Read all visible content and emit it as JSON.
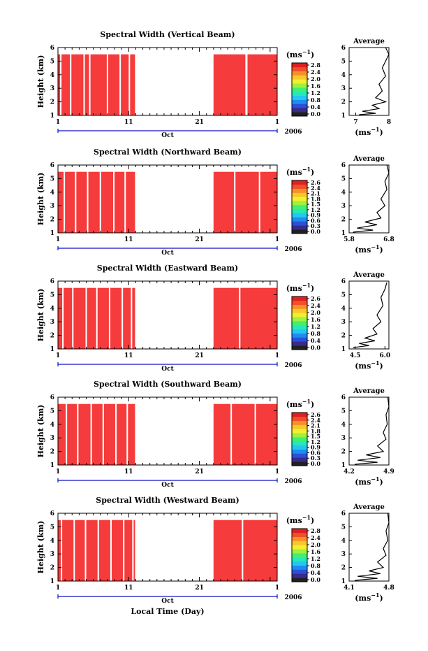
{
  "figure": {
    "xlabel": "Local Time (Day)",
    "month_label": "Oct",
    "year_label": "2006",
    "x_ticks": [
      "1",
      "11",
      "21",
      "1"
    ],
    "y_label": "Height (km)",
    "y_ticks": [
      "1",
      "2",
      "3",
      "4",
      "5",
      "6"
    ],
    "colorbar_unit_base": "(ms",
    "colorbar_unit_exp": "−1",
    "average_title": "Average",
    "average_unit_base": "(ms",
    "average_unit_exp": "−1",
    "colors": {
      "background": "#ffffff",
      "heatmap_fill": "#f53b3b",
      "axis": "#000000",
      "time_bar": "#1010c0"
    },
    "colorscale": [
      "#202020",
      "#3a2a8c",
      "#2a50d8",
      "#1e8cf0",
      "#22c8f0",
      "#28e8b8",
      "#40f070",
      "#a0f040",
      "#f0f030",
      "#f8c828",
      "#f89028",
      "#f05028",
      "#e02020"
    ]
  },
  "chart_data": [
    {
      "type": "heatmap",
      "title": "Spectral Width (Vertical Beam)",
      "colorbar_ticks": [
        "2.8",
        "2.4",
        "2.0",
        "1.6",
        "1.2",
        "0.8",
        "0.4",
        "0.0"
      ],
      "average": {
        "x_ticks": [
          "7",
          "8"
        ],
        "xlim": [
          6.8,
          8.0
        ]
      },
      "x_range_days": [
        1,
        32
      ],
      "y_range_km": [
        1,
        6
      ],
      "data_top_km": 5.5,
      "data_periods_days": [
        [
          1,
          11.9
        ],
        [
          23.0,
          32.0
        ]
      ],
      "gaps_days": [
        [
          1.3,
          1.5
        ],
        [
          2.7,
          2.9
        ],
        [
          4.6,
          4.8
        ],
        [
          5.4,
          5.6
        ],
        [
          7.9,
          8.1
        ],
        [
          9.7,
          9.9
        ],
        [
          11.0,
          11.2
        ],
        [
          22.5,
          22.8
        ],
        [
          27.5,
          27.8
        ]
      ],
      "average_profile": [
        [
          7.1,
          1.05
        ],
        [
          7.6,
          1.15
        ],
        [
          7.2,
          1.3
        ],
        [
          7.7,
          1.5
        ],
        [
          7.5,
          1.75
        ],
        [
          7.9,
          2.0
        ],
        [
          7.6,
          2.3
        ],
        [
          7.8,
          2.8
        ],
        [
          7.7,
          3.3
        ],
        [
          7.9,
          3.9
        ],
        [
          7.8,
          4.5
        ],
        [
          7.9,
          5.0
        ],
        [
          8.0,
          5.5
        ],
        [
          7.9,
          6.0
        ]
      ]
    },
    {
      "type": "heatmap",
      "title": "Spectral Width (Northward Beam)",
      "colorbar_ticks": [
        "2.6",
        "2.4",
        "2.1",
        "1.8",
        "1.5",
        "1.2",
        "0.9",
        "0.6",
        "0.3",
        "0.0"
      ],
      "average": {
        "x_ticks": [
          "5.8",
          "6.8"
        ],
        "xlim": [
          5.8,
          6.8
        ]
      },
      "x_range_days": [
        1,
        32
      ],
      "y_range_km": [
        1,
        6
      ],
      "data_top_km": 5.5,
      "data_periods_days": [
        [
          1,
          11.9
        ],
        [
          23.0,
          32.0
        ]
      ],
      "gaps_days": [
        [
          1.8,
          2.0
        ],
        [
          3.4,
          3.6
        ],
        [
          5.1,
          5.3
        ],
        [
          6.9,
          7.1
        ],
        [
          8.8,
          9.0
        ],
        [
          10.4,
          10.6
        ],
        [
          22.5,
          22.8
        ],
        [
          25.9,
          26.1
        ],
        [
          29.4,
          29.6
        ]
      ],
      "average_profile": [
        [
          5.9,
          1.05
        ],
        [
          6.4,
          1.2
        ],
        [
          6.0,
          1.35
        ],
        [
          6.5,
          1.6
        ],
        [
          6.2,
          1.8
        ],
        [
          6.6,
          2.1
        ],
        [
          6.5,
          2.5
        ],
        [
          6.7,
          3.0
        ],
        [
          6.6,
          3.5
        ],
        [
          6.75,
          4.2
        ],
        [
          6.7,
          4.8
        ],
        [
          6.8,
          5.4
        ],
        [
          6.75,
          6.0
        ]
      ]
    },
    {
      "type": "heatmap",
      "title": "Spectral Width (Eastward Beam)",
      "colorbar_ticks": [
        "2.6",
        "2.4",
        "2.0",
        "1.6",
        "1.2",
        "0.8",
        "0.4",
        "0.0"
      ],
      "average": {
        "x_ticks": [
          "4.5",
          "6.0"
        ],
        "xlim": [
          4.2,
          6.2
        ]
      },
      "x_range_days": [
        1,
        32
      ],
      "y_range_km": [
        1,
        6
      ],
      "data_top_km": 5.5,
      "data_periods_days": [
        [
          1,
          11.9
        ],
        [
          23.0,
          32.0
        ]
      ],
      "gaps_days": [
        [
          1.6,
          1.8
        ],
        [
          3.0,
          3.2
        ],
        [
          4.9,
          5.1
        ],
        [
          6.4,
          6.6
        ],
        [
          8.2,
          8.4
        ],
        [
          10.0,
          10.2
        ],
        [
          11.3,
          11.5
        ],
        [
          22.5,
          22.8
        ],
        [
          26.6,
          26.8
        ]
      ],
      "average_profile": [
        [
          4.4,
          1.1
        ],
        [
          5.2,
          1.25
        ],
        [
          4.7,
          1.4
        ],
        [
          5.5,
          1.6
        ],
        [
          5.0,
          1.8
        ],
        [
          5.6,
          2.1
        ],
        [
          5.4,
          2.5
        ],
        [
          5.8,
          3.0
        ],
        [
          5.6,
          3.5
        ],
        [
          5.9,
          4.2
        ],
        [
          5.8,
          4.8
        ],
        [
          6.0,
          5.4
        ],
        [
          6.1,
          5.9
        ]
      ]
    },
    {
      "type": "heatmap",
      "title": "Spectral Width (Southward Beam)",
      "colorbar_ticks": [
        "2.6",
        "2.4",
        "2.1",
        "1.8",
        "1.5",
        "1.2",
        "0.9",
        "0.6",
        "0.3",
        "0.0"
      ],
      "average": {
        "x_ticks": [
          "4.2",
          "4.9"
        ],
        "xlim": [
          4.2,
          4.9
        ]
      },
      "x_range_days": [
        1,
        32
      ],
      "y_range_km": [
        1,
        6
      ],
      "data_top_km": 5.5,
      "data_periods_days": [
        [
          1,
          11.9
        ],
        [
          23.0,
          32.0
        ]
      ],
      "gaps_days": [
        [
          2.1,
          2.3
        ],
        [
          3.7,
          3.9
        ],
        [
          5.6,
          5.8
        ],
        [
          7.3,
          7.5
        ],
        [
          9.1,
          9.3
        ],
        [
          10.7,
          10.9
        ],
        [
          22.5,
          22.8
        ],
        [
          25.4,
          25.6
        ],
        [
          28.8,
          29.0
        ]
      ],
      "average_profile": [
        [
          4.3,
          1.05
        ],
        [
          4.7,
          1.2
        ],
        [
          4.35,
          1.35
        ],
        [
          4.75,
          1.55
        ],
        [
          4.5,
          1.75
        ],
        [
          4.8,
          2.0
        ],
        [
          4.7,
          2.4
        ],
        [
          4.85,
          2.9
        ],
        [
          4.8,
          3.4
        ],
        [
          4.87,
          4.0
        ],
        [
          4.85,
          4.7
        ],
        [
          4.9,
          5.3
        ],
        [
          4.88,
          6.0
        ]
      ]
    },
    {
      "type": "heatmap",
      "title": "Spectral Width (Westward Beam)",
      "colorbar_ticks": [
        "2.8",
        "2.4",
        "2.0",
        "1.6",
        "1.2",
        "0.8",
        "0.4",
        "0.0"
      ],
      "average": {
        "x_ticks": [
          "4.1",
          "4.8"
        ],
        "xlim": [
          4.1,
          4.8
        ]
      },
      "x_range_days": [
        1,
        32
      ],
      "y_range_km": [
        1,
        6
      ],
      "data_top_km": 5.5,
      "data_periods_days": [
        [
          1,
          11.9
        ],
        [
          23.0,
          32.0
        ]
      ],
      "gaps_days": [
        [
          1.4,
          1.6
        ],
        [
          3.2,
          3.4
        ],
        [
          4.8,
          5.0
        ],
        [
          6.6,
          6.8
        ],
        [
          8.4,
          8.6
        ],
        [
          10.2,
          10.4
        ],
        [
          11.5,
          11.7
        ],
        [
          22.5,
          22.8
        ],
        [
          27.0,
          27.2
        ]
      ],
      "average_profile": [
        [
          4.2,
          1.05
        ],
        [
          4.6,
          1.2
        ],
        [
          4.25,
          1.35
        ],
        [
          4.65,
          1.55
        ],
        [
          4.45,
          1.75
        ],
        [
          4.7,
          2.0
        ],
        [
          4.6,
          2.4
        ],
        [
          4.75,
          2.9
        ],
        [
          4.7,
          3.4
        ],
        [
          4.78,
          4.0
        ],
        [
          4.75,
          4.7
        ],
        [
          4.8,
          5.3
        ],
        [
          4.78,
          6.0
        ]
      ]
    }
  ]
}
